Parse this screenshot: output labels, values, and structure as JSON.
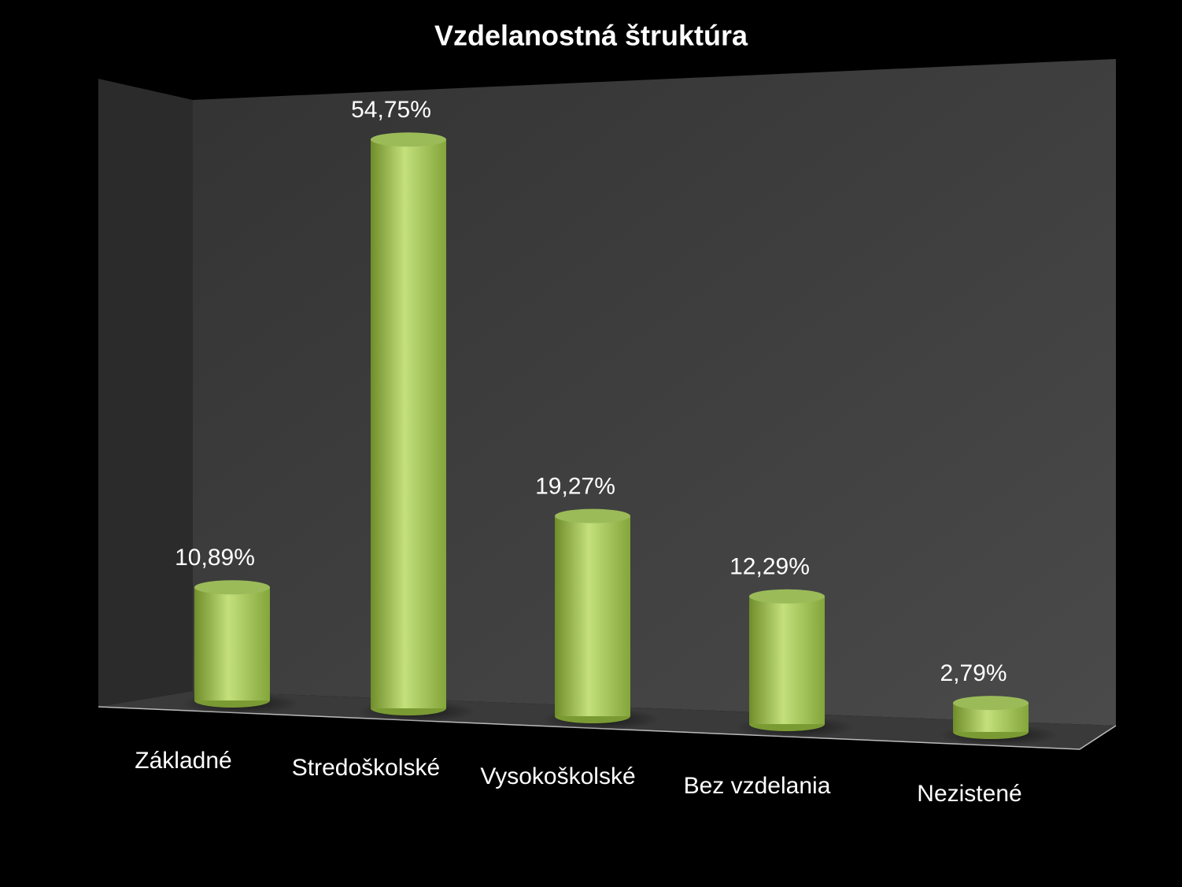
{
  "chart_data": {
    "type": "bar",
    "title": "Vzdelanostná štruktúra",
    "categories": [
      "Základné",
      "Stredoškolské",
      "Vysokoškolské",
      "Bez vzdelania",
      "Nezistené"
    ],
    "values": [
      10.89,
      54.75,
      19.27,
      12.29,
      2.79
    ],
    "value_labels": [
      "10,89%",
      "54,75%",
      "19,27%",
      "12,29%",
      "2,79%"
    ],
    "color": "#9bbb59",
    "ylim": [
      0,
      60
    ]
  }
}
